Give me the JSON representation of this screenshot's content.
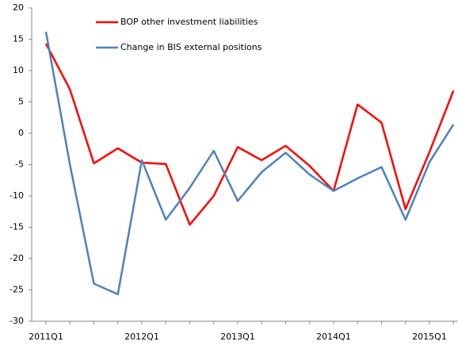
{
  "chart_data": {
    "type": "line",
    "categories": [
      "2011Q1",
      null,
      null,
      null,
      "2012Q1",
      null,
      null,
      null,
      "2013Q1",
      null,
      null,
      null,
      "2014Q1",
      null,
      null,
      null,
      "2015Q1",
      null
    ],
    "series": [
      {
        "name": "BOP other investment liabilities",
        "color": "#ff0000",
        "values": [
          14.3,
          7,
          -4.8,
          -2.4,
          -4.7,
          -4.9,
          -14.6,
          -10,
          -2.2,
          -4.3,
          -2,
          -5.2,
          -9.2,
          4.6,
          1.7,
          -12.1,
          -3,
          6.8
        ]
      },
      {
        "name": "Change in BIS external positions",
        "color": "#4f81bd",
        "values": [
          16.2,
          -5,
          -24,
          -25.7,
          -4.3,
          -13.8,
          -8.7,
          -2.8,
          -10.8,
          -6.2,
          -3.1,
          -6.6,
          -9.2,
          -7.2,
          -5.4,
          -13.8,
          -4.6,
          1.4
        ]
      }
    ],
    "ylim": [
      -30,
      20
    ],
    "yticks": [
      -30,
      -25,
      -20,
      -15,
      -10,
      -5,
      0,
      5,
      10,
      15,
      20
    ],
    "grid": false,
    "legend": "top"
  }
}
